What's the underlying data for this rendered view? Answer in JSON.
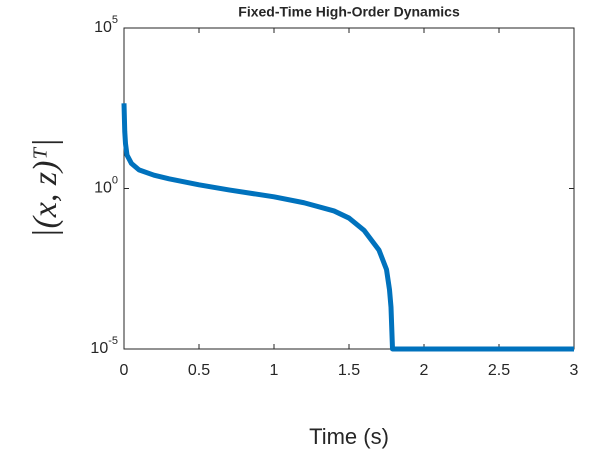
{
  "chart_data": {
    "type": "line",
    "title": "Fixed-Time High-Order Dynamics",
    "xlabel": "Time (s)",
    "ylabel": "|(x, z)ᵀ|",
    "x": [
      0,
      0.005,
      0.01,
      0.02,
      0.05,
      0.1,
      0.2,
      0.3,
      0.5,
      0.7,
      1.0,
      1.2,
      1.4,
      1.5,
      1.6,
      1.7,
      1.75,
      1.77,
      1.78,
      1.79,
      3.0
    ],
    "series": [
      {
        "name": "|(x, z)ᵀ|",
        "color": "#0072bd",
        "values": [
          450,
          60,
          25,
          11,
          6,
          3.8,
          2.6,
          2,
          1.3,
          0.9,
          0.55,
          0.36,
          0.2,
          0.12,
          0.05,
          0.012,
          0.003,
          0.0007,
          0.0002,
          1e-05,
          1e-05
        ]
      }
    ],
    "xlim": [
      0,
      3
    ],
    "xticks": [
      0,
      0.5,
      1,
      1.5,
      2,
      2.5,
      3
    ],
    "ylim": [
      1e-05,
      100000
    ],
    "log_y": true,
    "yticks": [
      {
        "value": 1e-05,
        "label": "10^-5"
      },
      {
        "value": 1,
        "label": "10^0"
      },
      {
        "value": 100000,
        "label": "10^5"
      }
    ],
    "grid": false
  }
}
